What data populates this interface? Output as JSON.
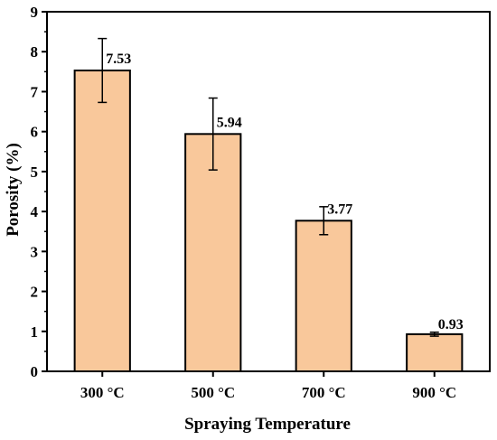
{
  "chart_data": {
    "type": "bar",
    "categories": [
      "300 °C",
      "500 °C",
      "700 °C",
      "900 °C"
    ],
    "values": [
      7.53,
      5.94,
      3.77,
      0.93
    ],
    "value_labels": [
      "7.53",
      "5.94",
      "3.77",
      "0.93"
    ],
    "errors": [
      0.8,
      0.9,
      0.35,
      0.05
    ],
    "xlabel": "Spraying Temperature",
    "ylabel": "Porosity (%)",
    "ylim": [
      0,
      9
    ],
    "yticks": [
      "0",
      "1",
      "2",
      "3",
      "4",
      "5",
      "6",
      "7",
      "8",
      "9"
    ],
    "grid": false,
    "legend": false
  },
  "colors": {
    "bar_fill": "#F9C89B",
    "bar_edge": "#000000",
    "axis": "#000000"
  }
}
